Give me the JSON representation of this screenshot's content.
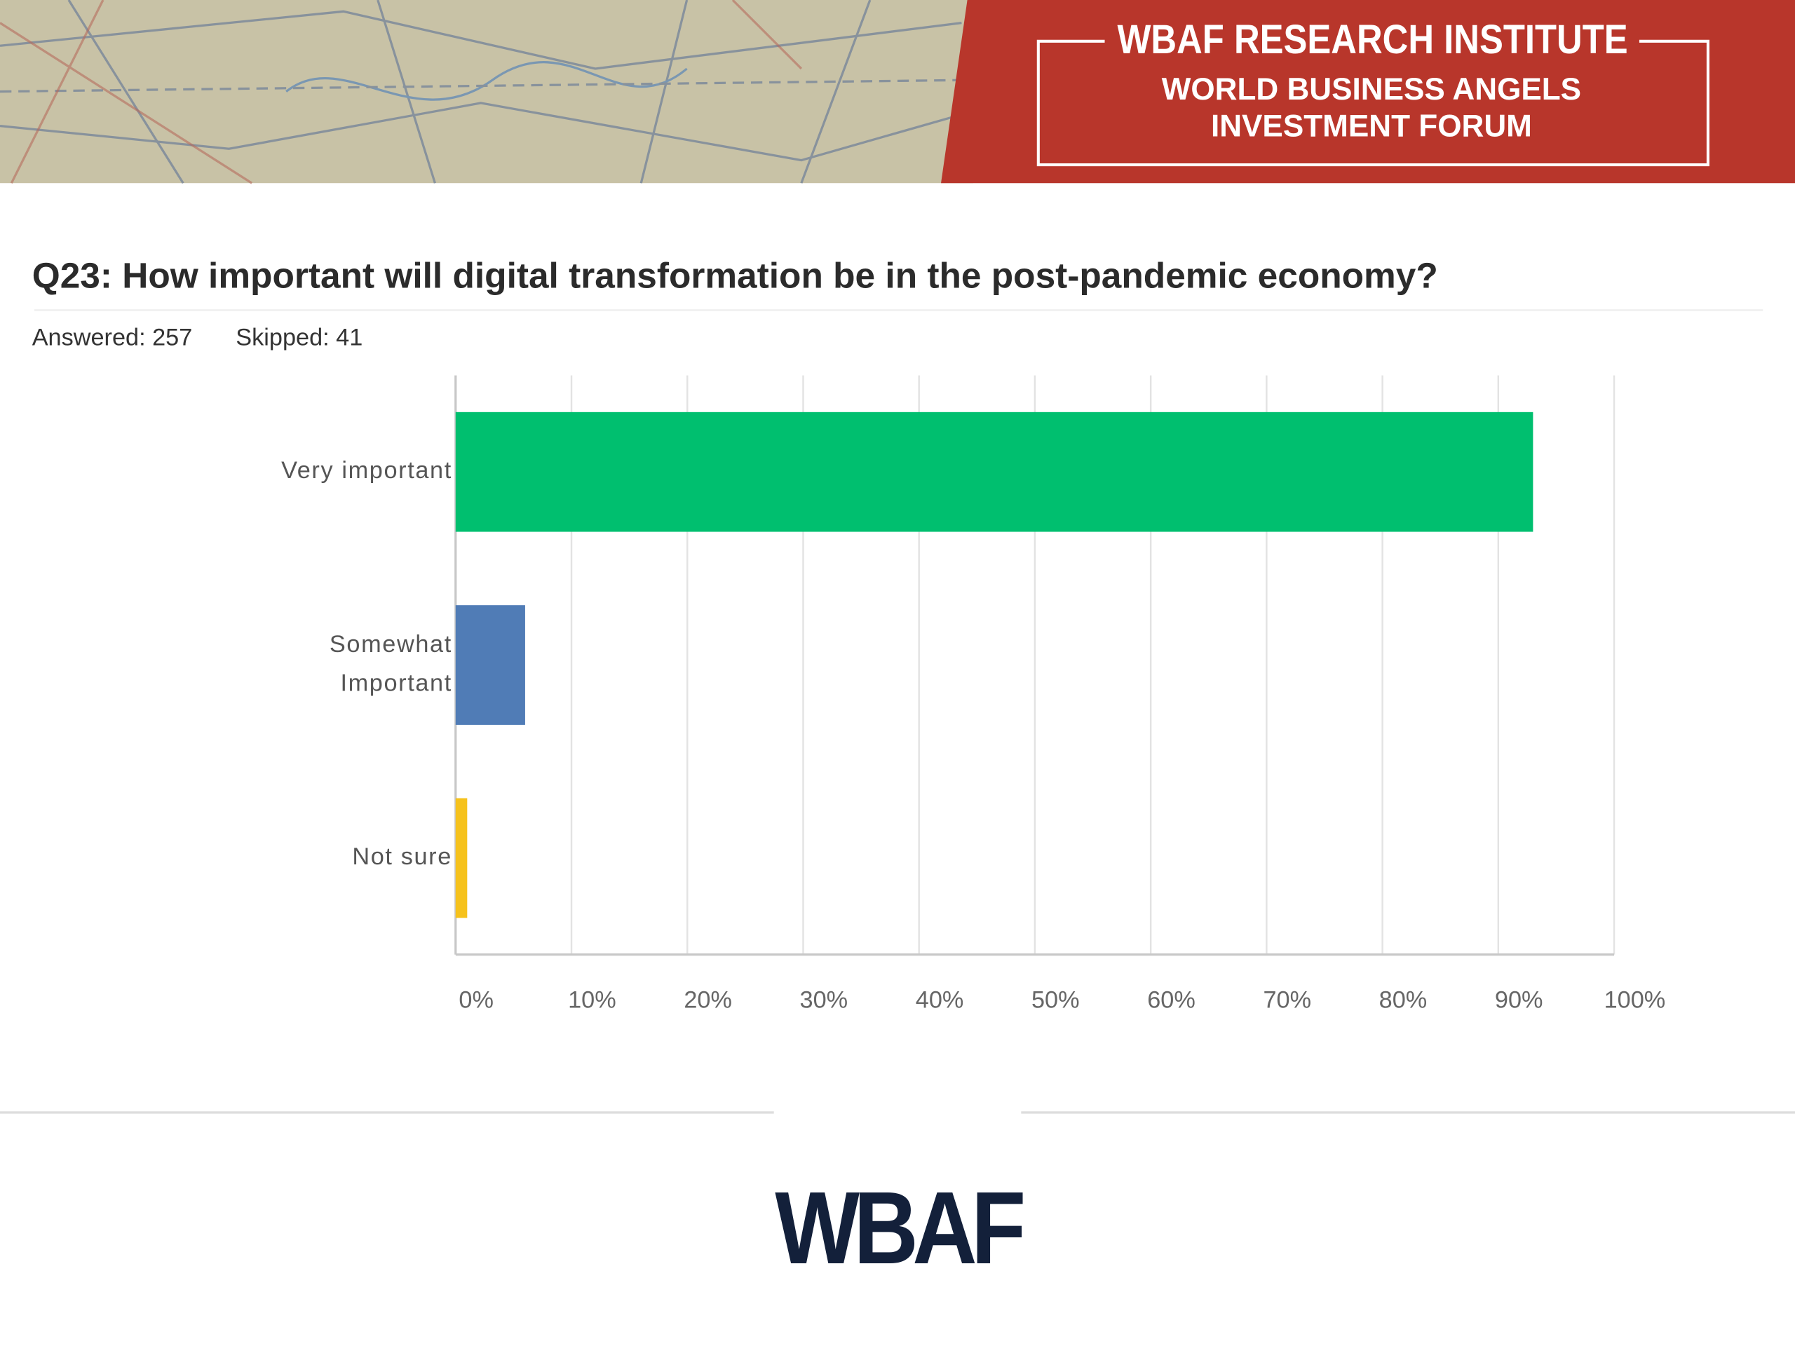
{
  "header": {
    "title": "WBAF RESEARCH INSTITUTE",
    "subtitle_lines": [
      "WORLD BUSINESS ANGELS",
      "INVESTMENT FORUM"
    ]
  },
  "question": "Q23: How important will digital transformation be in the post-pandemic economy?",
  "answered": "Answered: 257",
  "skipped": "Skipped: 41",
  "chart_data": {
    "type": "bar",
    "orientation": "horizontal",
    "categories": [
      "Very important",
      "Somewhat Important",
      "Not sure"
    ],
    "values": [
      93,
      6,
      1
    ],
    "colors": [
      "#00bf6f",
      "#507cb6",
      "#f6c21c"
    ],
    "xlim": [
      0,
      100
    ],
    "xticks": [
      {
        "value": 0,
        "label": "0%"
      },
      {
        "value": 10,
        "label": "10%"
      },
      {
        "value": 20,
        "label": "20%"
      },
      {
        "value": 30,
        "label": "30%"
      },
      {
        "value": 40,
        "label": "40%"
      },
      {
        "value": 50,
        "label": "50%"
      },
      {
        "value": 60,
        "label": "60%"
      },
      {
        "value": 70,
        "label": "70%"
      },
      {
        "value": 80,
        "label": "80%"
      },
      {
        "value": 90,
        "label": "90%"
      },
      {
        "value": 100,
        "label": "100%"
      }
    ],
    "grid": true
  },
  "footer": {
    "logo": "WBAF"
  }
}
